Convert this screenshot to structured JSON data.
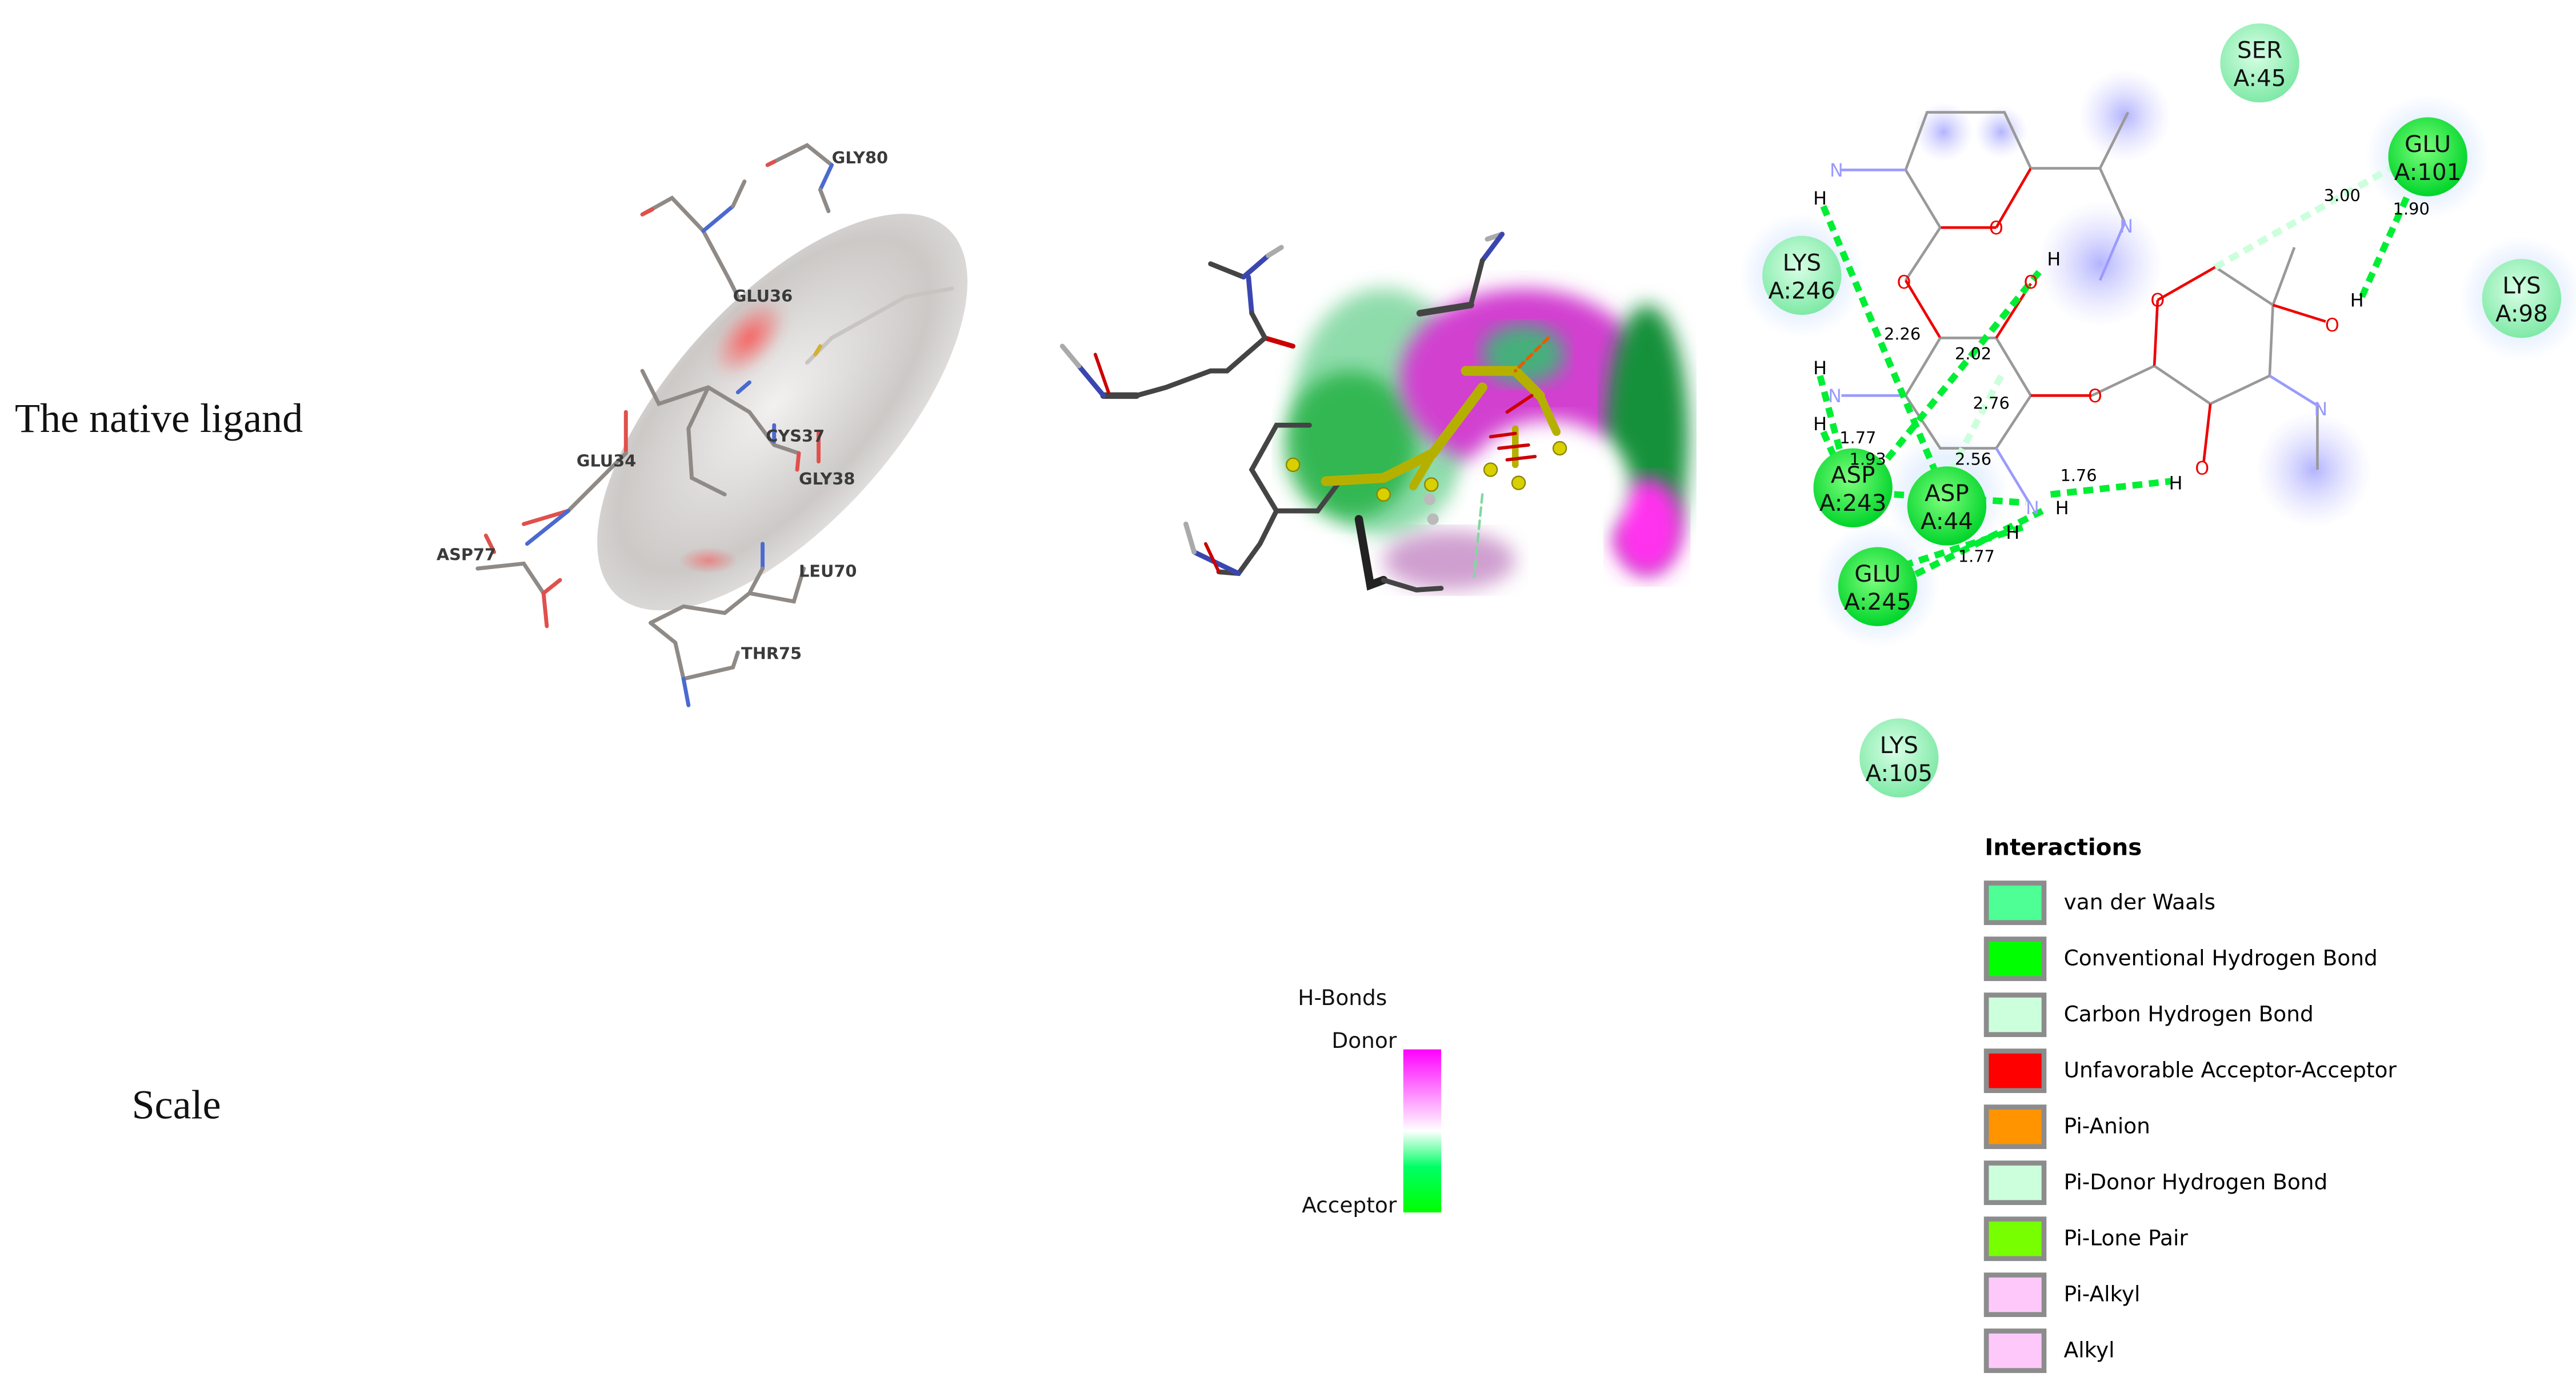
{
  "panel_labels": {
    "native_ligand": "The native ligand",
    "scale": "Scale"
  },
  "left_3d_view": {
    "residue_labels": [
      "GLY80",
      "GLU36",
      "GLU34",
      "CYS37",
      "GLY38",
      "ASP77",
      "LEU70",
      "THR75"
    ]
  },
  "hbond_scale": {
    "title": "H-Bonds",
    "top_label": "Donor",
    "bottom_label": "Acceptor",
    "colors": {
      "donor": "#ff00ff",
      "mid": "#ffffff",
      "acceptor": "#00ff00"
    }
  },
  "interaction_diagram": {
    "residues": [
      {
        "name": "SER",
        "num": "A:45",
        "type": "van der Waals"
      },
      {
        "name": "GLU",
        "num": "A:101",
        "type": "Conventional Hydrogen Bond"
      },
      {
        "name": "LYS",
        "num": "A:246",
        "type": "van der Waals"
      },
      {
        "name": "LYS",
        "num": "A:98",
        "type": "van der Waals"
      },
      {
        "name": "ASP",
        "num": "A:243",
        "type": "Conventional Hydrogen Bond"
      },
      {
        "name": "ASP",
        "num": "A:44",
        "type": "Conventional Hydrogen Bond"
      },
      {
        "name": "GLU",
        "num": "A:245",
        "type": "Conventional Hydrogen Bond"
      },
      {
        "name": "LYS",
        "num": "A:105",
        "type": "van der Waals"
      }
    ],
    "distances": [
      "3.00",
      "1.90",
      "2.26",
      "2.02",
      "2.76",
      "1.77",
      "1.93",
      "1.76",
      "1.77",
      "2.56"
    ],
    "atom_labels": {
      "N": "N",
      "O": "O",
      "H": "H"
    }
  },
  "legend": {
    "title": "Interactions",
    "items": [
      {
        "label": "van der Waals",
        "color": "#4dff94"
      },
      {
        "label": "Conventional Hydrogen Bond",
        "color": "#00ff00"
      },
      {
        "label": "Carbon Hydrogen Bond",
        "color": "#ccffdc"
      },
      {
        "label": "Unfavorable Acceptor-Acceptor",
        "color": "#ff0000"
      },
      {
        "label": "Pi-Anion",
        "color": "#ff9400"
      },
      {
        "label": "Pi-Donor Hydrogen Bond",
        "color": "#ccffdc"
      },
      {
        "label": "Pi-Lone Pair",
        "color": "#77ff00"
      },
      {
        "label": "Pi-Alkyl",
        "color": "#ffc8fa"
      },
      {
        "label": "Alkyl",
        "color": "#ffc8fa"
      }
    ]
  }
}
